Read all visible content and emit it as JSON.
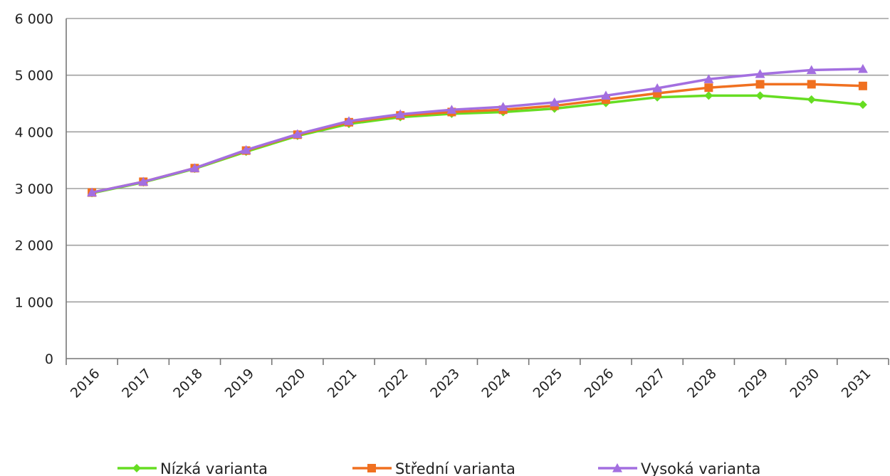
{
  "chart_data": {
    "type": "line",
    "title": "",
    "xlabel": "",
    "ylabel": "",
    "x": [
      "2016",
      "2017",
      "2018",
      "2019",
      "2020",
      "2021",
      "2022",
      "2023",
      "2024",
      "2025",
      "2026",
      "2027",
      "2028",
      "2029",
      "2030",
      "2031"
    ],
    "ylim": [
      0,
      6000
    ],
    "yticks": [
      0,
      1000,
      2000,
      3000,
      4000,
      5000,
      6000
    ],
    "ytick_labels": [
      "0",
      "1 000",
      "2 000",
      "3 000",
      "4 000",
      "5 000",
      "6 000"
    ],
    "grid": "horizontal",
    "legend_position": "bottom",
    "series": [
      {
        "name": "Nízká varianta",
        "color": "#66dd22",
        "marker": "diamond",
        "values": [
          2920,
          3110,
          3350,
          3650,
          3930,
          4140,
          4260,
          4320,
          4350,
          4410,
          4510,
          4610,
          4640,
          4640,
          4570,
          4480
        ]
      },
      {
        "name": "Střední varianta",
        "color": "#f07020",
        "marker": "square",
        "values": [
          2930,
          3120,
          3360,
          3670,
          3950,
          4170,
          4290,
          4350,
          4390,
          4460,
          4570,
          4680,
          4780,
          4840,
          4840,
          4810
        ]
      },
      {
        "name": "Vysoká varianta",
        "color": "#a36fe0",
        "marker": "triangle",
        "values": [
          2930,
          3120,
          3360,
          3680,
          3960,
          4190,
          4310,
          4390,
          4440,
          4520,
          4640,
          4770,
          4930,
          5020,
          5090,
          5110
        ]
      }
    ]
  }
}
